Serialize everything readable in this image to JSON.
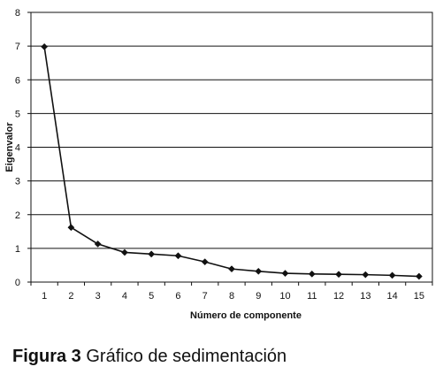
{
  "chart_data": {
    "type": "line",
    "xlabel": "Número de componente",
    "ylabel": "Eigenvalor",
    "x": [
      1,
      2,
      3,
      4,
      5,
      6,
      7,
      8,
      9,
      10,
      11,
      12,
      13,
      14,
      15
    ],
    "values": [
      6.98,
      1.62,
      1.13,
      0.88,
      0.83,
      0.78,
      0.6,
      0.39,
      0.32,
      0.26,
      0.24,
      0.23,
      0.22,
      0.2,
      0.17
    ],
    "ylim": [
      0,
      8
    ],
    "yticks": [
      0,
      1,
      2,
      3,
      4,
      5,
      6,
      7,
      8
    ],
    "xticks": [
      "1",
      "2",
      "3",
      "4",
      "5",
      "6",
      "7",
      "8",
      "9",
      "10",
      "11",
      "12",
      "13",
      "14",
      "15"
    ],
    "grid": "horizontal",
    "marker": "diamond",
    "line_color": "#111111"
  },
  "caption": {
    "label": "Figura 3",
    "text": "Gráfico de sedimentación"
  }
}
